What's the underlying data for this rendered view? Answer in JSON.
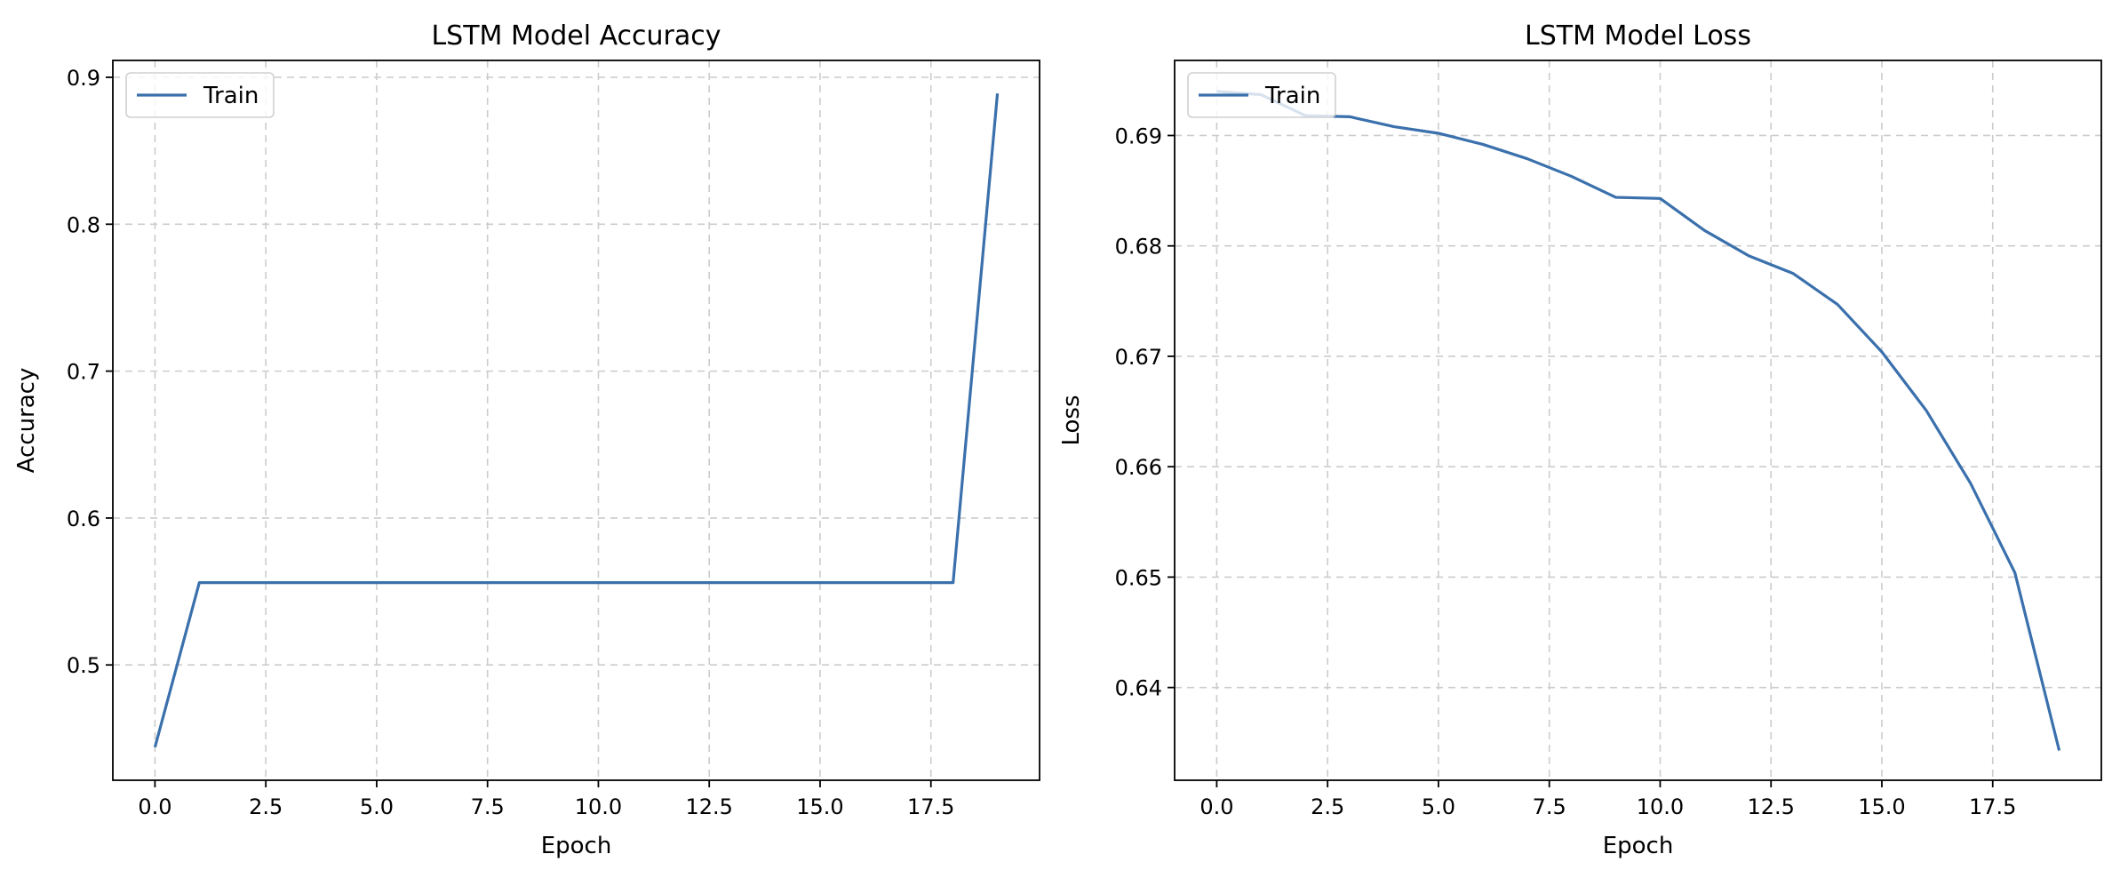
{
  "chart_data": [
    {
      "type": "line",
      "title": "LSTM Model Accuracy",
      "xlabel": "Epoch",
      "ylabel": "Accuracy",
      "xlim": [
        -0.95,
        19.95
      ],
      "ylim": [
        0.4215,
        0.9115
      ],
      "xticks": [
        0,
        2.5,
        5,
        7.5,
        10,
        12.5,
        15,
        17.5
      ],
      "xtick_labels": [
        "0.0",
        "2.5",
        "5.0",
        "7.5",
        "10.0",
        "12.5",
        "15.0",
        "17.5"
      ],
      "yticks": [
        0.5,
        0.6,
        0.7,
        0.8,
        0.9
      ],
      "ytick_labels": [
        "0.5",
        "0.6",
        "0.7",
        "0.8",
        "0.9"
      ],
      "grid": true,
      "legend_position": "upper-left",
      "series": [
        {
          "name": "Train",
          "color": "#3a70ac",
          "x": [
            0,
            1,
            2,
            3,
            4,
            5,
            6,
            7,
            8,
            9,
            10,
            11,
            12,
            13,
            14,
            15,
            16,
            17,
            18,
            19
          ],
          "y": [
            0.444,
            0.556,
            0.556,
            0.556,
            0.556,
            0.556,
            0.556,
            0.556,
            0.556,
            0.556,
            0.556,
            0.556,
            0.556,
            0.556,
            0.556,
            0.556,
            0.556,
            0.556,
            0.556,
            0.889
          ]
        }
      ]
    },
    {
      "type": "line",
      "title": "LSTM Model Loss",
      "xlabel": "Epoch",
      "ylabel": "Loss",
      "xlim": [
        -0.95,
        19.95
      ],
      "ylim": [
        0.6316,
        0.6968
      ],
      "xticks": [
        0,
        2.5,
        5,
        7.5,
        10,
        12.5,
        15,
        17.5
      ],
      "xtick_labels": [
        "0.0",
        "2.5",
        "5.0",
        "7.5",
        "10.0",
        "12.5",
        "15.0",
        "17.5"
      ],
      "yticks": [
        0.64,
        0.65,
        0.66,
        0.67,
        0.68,
        0.69
      ],
      "ytick_labels": [
        "0.64",
        "0.65",
        "0.66",
        "0.67",
        "0.68",
        "0.69"
      ],
      "grid": true,
      "legend_position": "upper-left",
      "series": [
        {
          "name": "Train",
          "color": "#3a70ac",
          "x": [
            0,
            1,
            2,
            3,
            4,
            5,
            6,
            7,
            8,
            9,
            10,
            11,
            12,
            13,
            14,
            15,
            16,
            17,
            18,
            19
          ],
          "y": [
            0.694,
            0.6937,
            0.6918,
            0.6917,
            0.6908,
            0.6902,
            0.6892,
            0.6879,
            0.6863,
            0.6844,
            0.6843,
            0.6814,
            0.6791,
            0.6775,
            0.6747,
            0.6704,
            0.6651,
            0.6585,
            0.6504,
            0.6343
          ]
        }
      ]
    }
  ]
}
